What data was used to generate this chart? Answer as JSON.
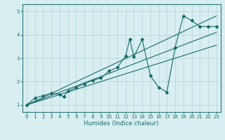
{
  "xlabel": "Humidex (Indice chaleur)",
  "bg_color": "#d8eef0",
  "grid_color": "#b8d8dc",
  "line_color": "#1a6b6b",
  "xlim": [
    -0.5,
    23.5
  ],
  "ylim": [
    0.7,
    5.3
  ],
  "yticks": [
    1,
    2,
    3,
    4,
    5
  ],
  "xticks": [
    0,
    1,
    2,
    3,
    4,
    5,
    6,
    7,
    8,
    9,
    10,
    11,
    12,
    13,
    14,
    15,
    16,
    17,
    18,
    19,
    20,
    21,
    22,
    23
  ],
  "main_x": [
    0,
    1,
    2,
    3,
    4,
    4.5,
    5,
    6,
    7,
    8,
    9,
    10,
    11,
    12,
    12.5,
    13,
    14,
    15,
    16,
    17,
    18,
    19,
    20,
    21,
    22,
    23
  ],
  "main_y": [
    1.0,
    1.3,
    1.4,
    1.5,
    1.45,
    1.35,
    1.6,
    1.75,
    1.9,
    2.05,
    2.15,
    2.45,
    2.6,
    3.1,
    3.8,
    3.05,
    3.8,
    2.25,
    1.75,
    1.55,
    3.45,
    4.8,
    4.6,
    4.35,
    4.35,
    4.35
  ],
  "line1_x": [
    0,
    23
  ],
  "line1_y": [
    1.0,
    4.8
  ],
  "line2_x": [
    0,
    23
  ],
  "line2_y": [
    1.0,
    4.1
  ],
  "line3_x": [
    0,
    23
  ],
  "line3_y": [
    1.0,
    3.55
  ]
}
